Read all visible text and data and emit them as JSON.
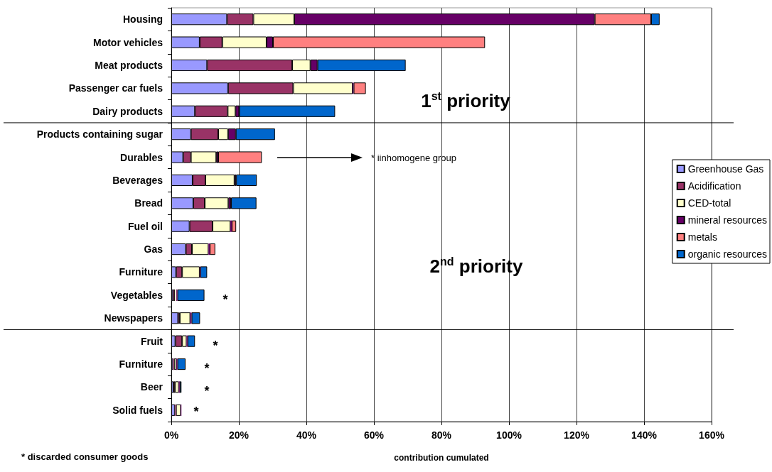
{
  "chart_data": {
    "type": "bar",
    "orientation": "horizontal",
    "stacked": true,
    "categories": [
      "Housing",
      "Motor vehicles",
      "Meat products",
      "Passenger car fuels",
      "Dairy products",
      "Products containing sugar",
      "Durables",
      "Beverages",
      "Bread",
      "Fuel oil",
      "Gas",
      "Furniture",
      "Vegetables",
      "Newspapers",
      "Fruit",
      "Furniture",
      "Beer",
      "Solid fuels"
    ],
    "series": [
      {
        "name": "Greenhouse Gas",
        "color": "#9999ff",
        "values": [
          16.5,
          8.4,
          10.6,
          16.8,
          7.0,
          5.8,
          3.5,
          6.3,
          6.5,
          5.4,
          4.3,
          1.4,
          0.5,
          2.0,
          1.2,
          0.5,
          0.6,
          1.1
        ]
      },
      {
        "name": "Acidification",
        "color": "#993366",
        "values": [
          7.8,
          6.7,
          25.2,
          19.3,
          9.7,
          8.1,
          2.3,
          3.8,
          3.4,
          6.8,
          1.8,
          1.8,
          0.6,
          0.5,
          2.0,
          0.3,
          0.5,
          0.3
        ]
      },
      {
        "name": "CED-total",
        "color": "#ffffcc",
        "values": [
          12.1,
          13.1,
          5.4,
          17.6,
          2.3,
          2.9,
          7.5,
          8.6,
          7.0,
          5.3,
          4.9,
          5.2,
          0.4,
          3.1,
          1.3,
          0.7,
          1.1,
          1.4
        ]
      },
      {
        "name": "mineral resources",
        "color": "#660066",
        "values": [
          89.0,
          1.9,
          2.1,
          0.3,
          1.1,
          2.3,
          0.6,
          0.5,
          0.8,
          0.4,
          0.4,
          0.2,
          0.3,
          0.4,
          0.3,
          0.3,
          0.3,
          0.2
        ]
      },
      {
        "name": "metals",
        "color": "#ff8080",
        "values": [
          16.7,
          62.8,
          0,
          3.6,
          0,
          0,
          12.9,
          0,
          0,
          1.3,
          1.6,
          0,
          0,
          0,
          0,
          0,
          0,
          0
        ]
      },
      {
        "name": "organic resources",
        "color": "#0066cc",
        "values": [
          2.5,
          0,
          26.1,
          0,
          28.4,
          11.6,
          0,
          6.1,
          7.5,
          0,
          0,
          2.0,
          8.0,
          2.5,
          2.2,
          2.4,
          0.5,
          0
        ]
      }
    ],
    "xlim": [
      0,
      160
    ],
    "xticks": [
      {
        "value": 0,
        "label": "0%"
      },
      {
        "value": 20,
        "label": "20%"
      },
      {
        "value": 40,
        "label": "40%"
      },
      {
        "value": 60,
        "label": "60%"
      },
      {
        "value": 80,
        "label": "80%"
      },
      {
        "value": 100,
        "label": "100%"
      },
      {
        "value": 120,
        "label": "120%"
      },
      {
        "value": 140,
        "label": "140%"
      },
      {
        "value": 160,
        "label": "160%"
      }
    ],
    "xlabel": "contribution cumulated",
    "grid": "x",
    "legend": "right",
    "ref_lines": [
      {
        "axis": "y",
        "value": "Dairy products"
      },
      {
        "axis": "y",
        "value": "Newspapers"
      }
    ],
    "annotations": [
      "1$^{st}$ priority",
      "2$^{nd}$ priority",
      "* discarded consumer goods",
      "* iinhomogene group",
      "*",
      "*",
      "*",
      "*",
      "*"
    ]
  }
}
